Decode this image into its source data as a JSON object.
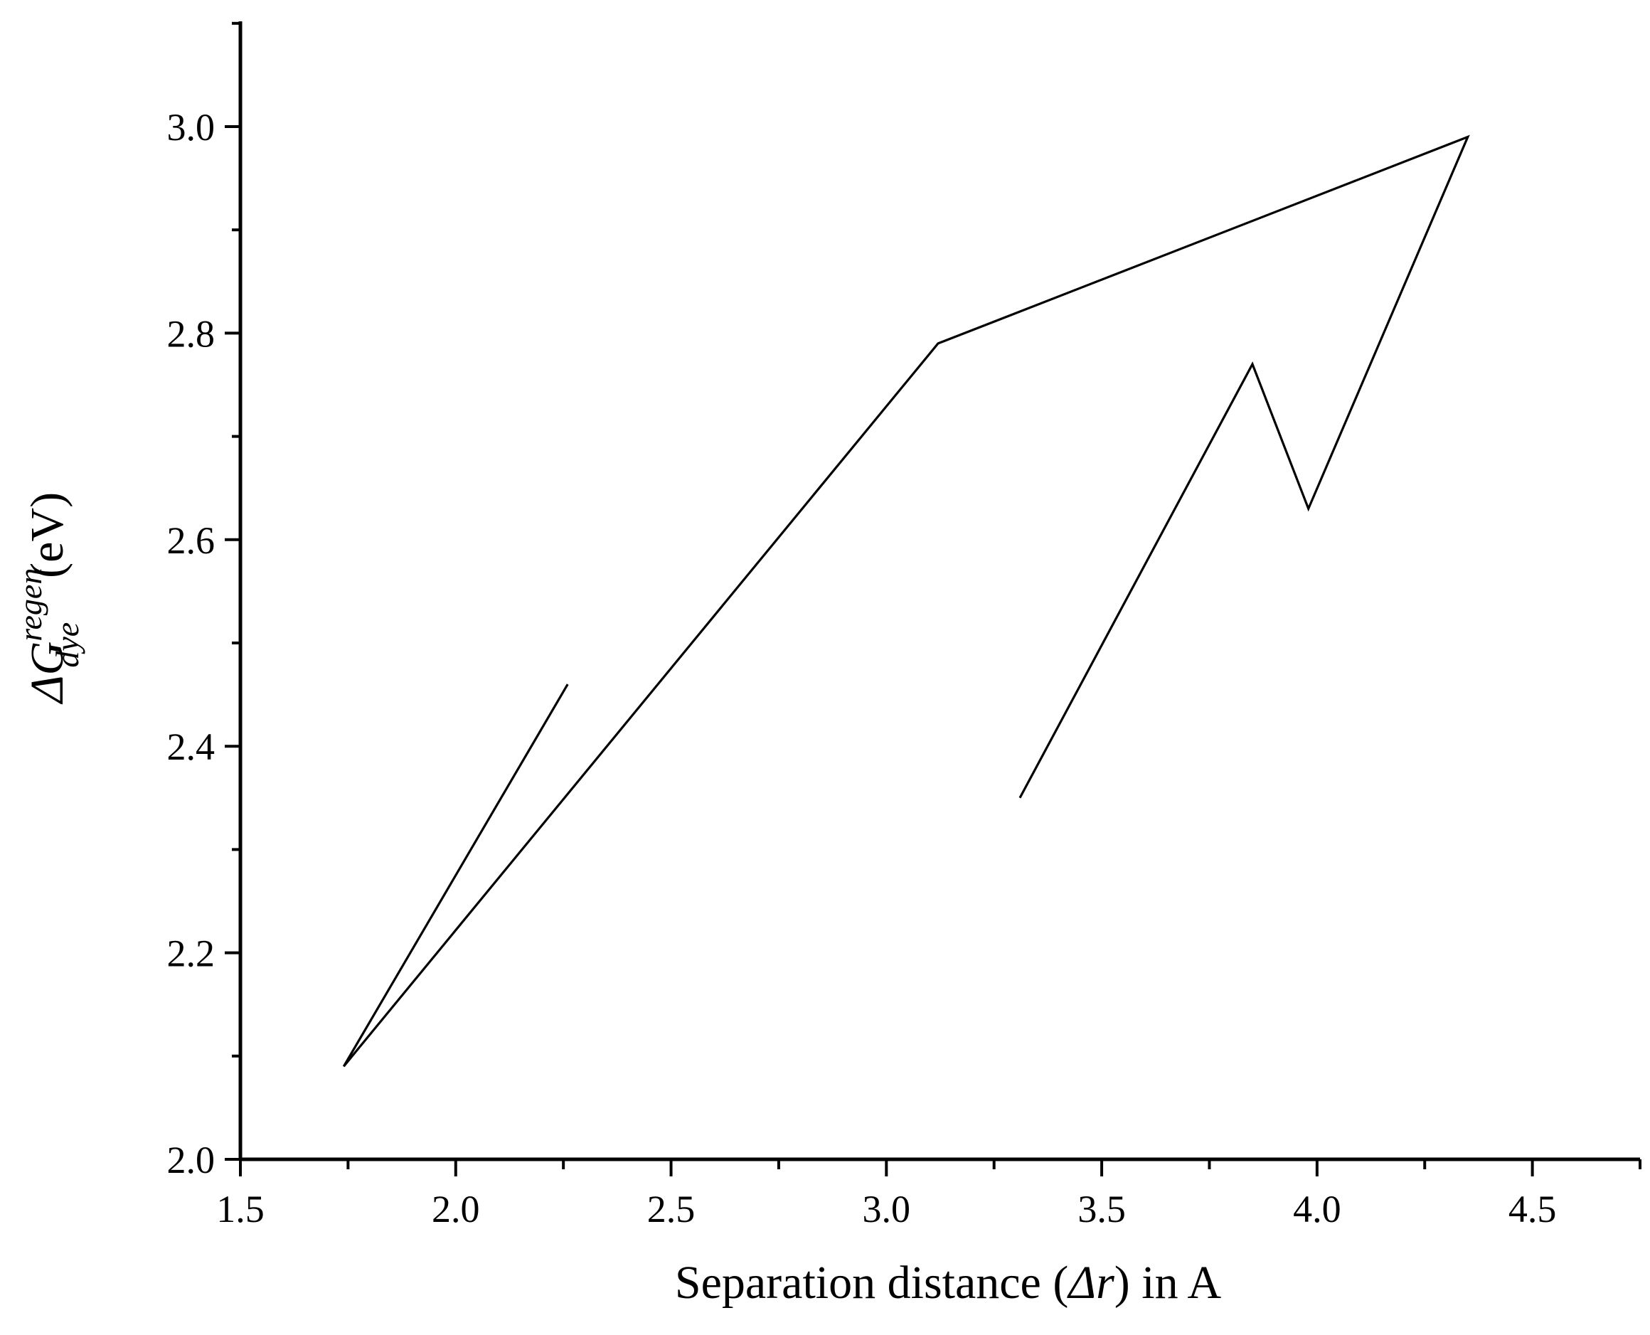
{
  "chart_data": {
    "type": "line",
    "xlabel": {
      "prefix": "Separation distance (",
      "symbol": "Δr",
      "suffix": ") in A"
    },
    "ylabel": {
      "delta": "ΔG",
      "superscript": "regen",
      "subscript": "dye",
      "unit": "(eV)"
    },
    "xlim": [
      1.5,
      4.75
    ],
    "ylim": [
      2.0,
      3.1
    ],
    "x_major_ticks": [
      "1.5",
      "2.0",
      "2.5",
      "3.0",
      "3.5",
      "4.0",
      "4.5"
    ],
    "y_major_ticks": [
      "2.0",
      "2.2",
      "2.4",
      "2.6",
      "2.8",
      "3.0"
    ],
    "x_minor_step": 0.25,
    "y_minor_step": 0.1,
    "grid": false,
    "legend": "none",
    "series": [
      {
        "x": [
          2.26,
          1.74,
          3.12,
          4.35,
          3.98,
          3.85,
          3.31
        ],
        "y": [
          2.46,
          2.09,
          2.79,
          2.99,
          2.63,
          2.77,
          2.35
        ]
      }
    ]
  }
}
